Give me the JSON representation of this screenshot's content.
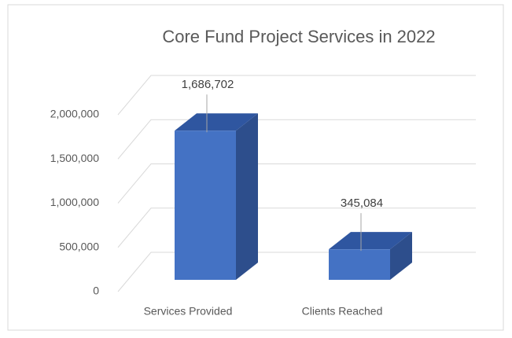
{
  "chart_data": {
    "type": "bar3d",
    "title": "Core Fund Project Services in 2022",
    "categories": [
      "Services Provided",
      "Clients Reached"
    ],
    "values": [
      1686702,
      345084
    ],
    "value_labels": [
      "1,686,702",
      "345,084"
    ],
    "color": "#4472c4",
    "ylim": [
      0,
      2000000
    ],
    "yticks": [
      0,
      {
        "value": 500000,
        "label": "500,000"
      },
      {
        "value": 1000000,
        "label": "1,000,000"
      },
      {
        "value": 1500000,
        "label": "1,500,000"
      },
      {
        "value": 2000000,
        "label": "2,000,000"
      }
    ],
    "grid": true
  }
}
